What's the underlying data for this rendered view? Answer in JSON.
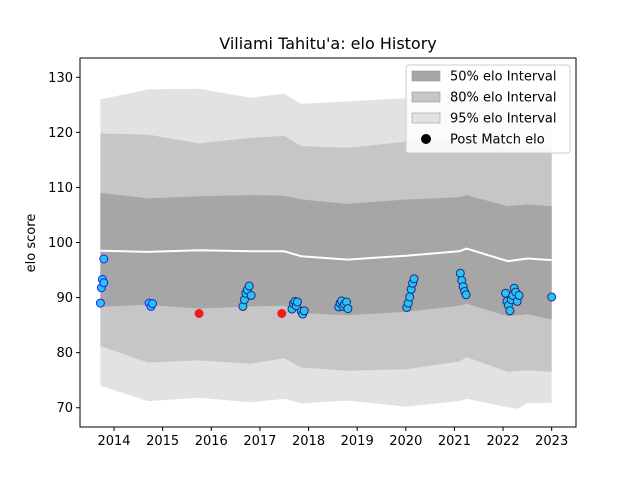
{
  "chart_data": {
    "type": "line",
    "title": "Viliami Tahitu'a: elo History",
    "xlabel": "",
    "ylabel": "elo score",
    "xlim": [
      2013.3,
      2023.5
    ],
    "ylim": [
      66.5,
      133.5
    ],
    "x_ticks": [
      2014,
      2015,
      2016,
      2017,
      2018,
      2019,
      2020,
      2021,
      2022,
      2023
    ],
    "y_ticks": [
      70,
      80,
      90,
      100,
      110,
      120,
      130
    ],
    "grid": false,
    "legend_position": "top-right",
    "legend": [
      {
        "label": "50% elo Interval",
        "kind": "band50"
      },
      {
        "label": "80% elo Interval",
        "kind": "band80"
      },
      {
        "label": "95% elo Interval",
        "kind": "band95"
      },
      {
        "label": "Post Match elo",
        "kind": "marker"
      }
    ],
    "colors": {
      "band50": "#a6a6a6",
      "band80": "#c6c6c6",
      "band95": "#e2e2e2",
      "mean_line": "#ffffff",
      "point_fill": "#29c3ef",
      "point_edge_dark": "#1b2a8a",
      "point_edge_blue": "#1f1fff",
      "point_red": "#ee1c1c"
    },
    "mean": {
      "x": [
        2013.72,
        2014.7,
        2015.75,
        2016.8,
        2017.5,
        2017.85,
        2018.8,
        2020.0,
        2021.1,
        2021.25,
        2022.1,
        2022.5,
        2023.0
      ],
      "y": [
        98.5,
        98.3,
        98.6,
        98.4,
        98.4,
        97.5,
        96.9,
        97.6,
        98.4,
        98.9,
        96.6,
        97.1,
        96.8
      ]
    },
    "band50": {
      "x": [
        2013.72,
        2014.7,
        2015.75,
        2016.8,
        2017.5,
        2017.85,
        2018.8,
        2020.0,
        2021.1,
        2021.25,
        2022.1,
        2022.5,
        2023.0
      ],
      "upper": [
        109.0,
        108.0,
        108.4,
        108.6,
        108.5,
        107.8,
        107.0,
        107.8,
        108.2,
        108.6,
        106.6,
        106.9,
        106.6
      ],
      "lower": [
        88.3,
        88.7,
        88.0,
        88.4,
        88.5,
        87.2,
        86.8,
        87.4,
        88.5,
        88.9,
        86.6,
        87.0,
        86.0
      ]
    },
    "band80": {
      "x": [
        2013.72,
        2014.7,
        2015.75,
        2016.8,
        2017.5,
        2017.85,
        2018.8,
        2020.0,
        2021.1,
        2021.25,
        2022.1,
        2022.5,
        2023.0
      ],
      "upper": [
        119.8,
        119.6,
        118.0,
        119.0,
        119.4,
        117.5,
        117.2,
        118.3,
        118.8,
        119.1,
        117.3,
        117.6,
        117.2
      ],
      "lower": [
        81.2,
        78.2,
        78.6,
        78.0,
        79.0,
        77.3,
        76.7,
        77.0,
        78.4,
        79.2,
        76.5,
        76.8,
        76.5
      ]
    },
    "band95": {
      "x": [
        2013.72,
        2014.7,
        2015.75,
        2016.8,
        2017.5,
        2017.85,
        2018.8,
        2020.0,
        2021.1,
        2021.25,
        2022.1,
        2022.3,
        2022.5,
        2023.0
      ],
      "upper": [
        126.0,
        127.8,
        127.9,
        126.3,
        127.0,
        125.2,
        125.6,
        126.2,
        127.5,
        127.8,
        125.0,
        125.2,
        125.2,
        125.0
      ],
      "lower": [
        74.0,
        71.2,
        71.8,
        71.0,
        71.6,
        70.8,
        71.3,
        70.2,
        71.2,
        71.6,
        70.1,
        69.8,
        70.8,
        70.9
      ]
    },
    "points": [
      {
        "x": 2013.72,
        "y": 89.0,
        "style": "blue"
      },
      {
        "x": 2013.74,
        "y": 91.8,
        "style": "blue"
      },
      {
        "x": 2013.76,
        "y": 93.3,
        "style": "blue"
      },
      {
        "x": 2013.79,
        "y": 92.7,
        "style": "blue"
      },
      {
        "x": 2013.79,
        "y": 97.0,
        "style": "blue"
      },
      {
        "x": 2014.72,
        "y": 89.0,
        "style": "blue"
      },
      {
        "x": 2014.76,
        "y": 88.4,
        "style": "blue"
      },
      {
        "x": 2014.79,
        "y": 88.9,
        "style": "blue"
      },
      {
        "x": 2015.75,
        "y": 87.1,
        "style": "red"
      },
      {
        "x": 2016.65,
        "y": 88.4,
        "style": "dark"
      },
      {
        "x": 2016.68,
        "y": 89.6,
        "style": "dark"
      },
      {
        "x": 2016.71,
        "y": 90.8,
        "style": "dark"
      },
      {
        "x": 2016.74,
        "y": 91.4,
        "style": "dark"
      },
      {
        "x": 2016.78,
        "y": 92.1,
        "style": "dark"
      },
      {
        "x": 2016.82,
        "y": 90.4,
        "style": "dark"
      },
      {
        "x": 2017.45,
        "y": 87.1,
        "style": "red"
      },
      {
        "x": 2017.66,
        "y": 87.9,
        "style": "dark"
      },
      {
        "x": 2017.69,
        "y": 88.9,
        "style": "dark"
      },
      {
        "x": 2017.72,
        "y": 89.3,
        "style": "dark"
      },
      {
        "x": 2017.75,
        "y": 88.5,
        "style": "dark"
      },
      {
        "x": 2017.77,
        "y": 89.2,
        "style": "dark"
      },
      {
        "x": 2017.85,
        "y": 87.5,
        "style": "dark"
      },
      {
        "x": 2017.88,
        "y": 87.0,
        "style": "dark"
      },
      {
        "x": 2017.91,
        "y": 87.6,
        "style": "dark"
      },
      {
        "x": 2018.62,
        "y": 88.3,
        "style": "dark"
      },
      {
        "x": 2018.65,
        "y": 89.0,
        "style": "dark"
      },
      {
        "x": 2018.68,
        "y": 89.4,
        "style": "dark"
      },
      {
        "x": 2018.71,
        "y": 88.4,
        "style": "dark"
      },
      {
        "x": 2018.74,
        "y": 88.8,
        "style": "dark"
      },
      {
        "x": 2018.78,
        "y": 89.2,
        "style": "dark"
      },
      {
        "x": 2018.81,
        "y": 88.0,
        "style": "dark"
      },
      {
        "x": 2020.02,
        "y": 88.2,
        "style": "dark"
      },
      {
        "x": 2020.05,
        "y": 89.0,
        "style": "dark"
      },
      {
        "x": 2020.08,
        "y": 90.1,
        "style": "dark"
      },
      {
        "x": 2020.11,
        "y": 91.5,
        "style": "dark"
      },
      {
        "x": 2020.14,
        "y": 92.6,
        "style": "dark"
      },
      {
        "x": 2020.17,
        "y": 93.4,
        "style": "dark"
      },
      {
        "x": 2021.12,
        "y": 94.4,
        "style": "dark"
      },
      {
        "x": 2021.15,
        "y": 93.1,
        "style": "dark"
      },
      {
        "x": 2021.18,
        "y": 92.0,
        "style": "dark"
      },
      {
        "x": 2021.21,
        "y": 91.1,
        "style": "dark"
      },
      {
        "x": 2021.24,
        "y": 90.5,
        "style": "dark"
      },
      {
        "x": 2022.05,
        "y": 90.8,
        "style": "dark"
      },
      {
        "x": 2022.08,
        "y": 89.3,
        "style": "dark"
      },
      {
        "x": 2022.11,
        "y": 88.6,
        "style": "dark"
      },
      {
        "x": 2022.14,
        "y": 87.6,
        "style": "dark"
      },
      {
        "x": 2022.17,
        "y": 89.6,
        "style": "dark"
      },
      {
        "x": 2022.2,
        "y": 90.4,
        "style": "dark"
      },
      {
        "x": 2022.23,
        "y": 91.7,
        "style": "dark"
      },
      {
        "x": 2022.26,
        "y": 91.0,
        "style": "dark"
      },
      {
        "x": 2022.29,
        "y": 89.3,
        "style": "dark"
      },
      {
        "x": 2022.33,
        "y": 90.4,
        "style": "dark"
      },
      {
        "x": 2023.0,
        "y": 90.1,
        "style": "dark"
      }
    ]
  }
}
